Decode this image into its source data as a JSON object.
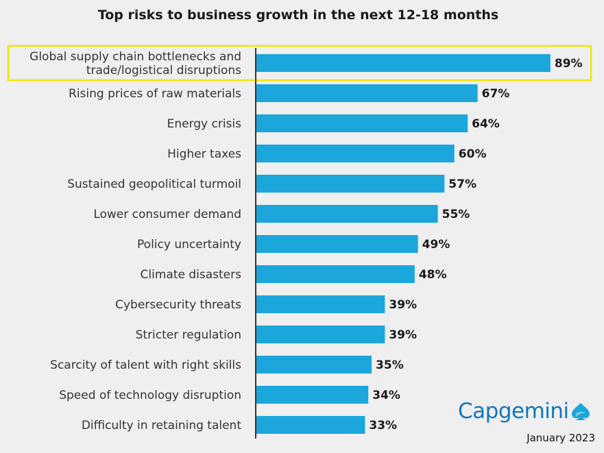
{
  "chart_data": {
    "type": "bar",
    "orientation": "horizontal",
    "title": "Top risks to business growth in the next 12-18 months",
    "categories": [
      "Global supply chain bottlenecks and trade/logistical disruptions",
      "Rising prices of raw materials",
      "Energy crisis",
      "Higher taxes",
      "Sustained geopolitical turmoil",
      "Lower consumer demand",
      "Policy uncertainty",
      "Climate disasters",
      "Cybersecurity threats",
      "Stricter regulation",
      "Scarcity of talent with right skills",
      "Speed of technology disruption",
      "Difficulty in retaining talent"
    ],
    "category_lines": [
      [
        "Global supply chain bottlenecks and",
        "trade/logistical disruptions"
      ],
      [
        "Rising prices of raw materials"
      ],
      [
        "Energy crisis"
      ],
      [
        "Higher taxes"
      ],
      [
        "Sustained geopolitical turmoil"
      ],
      [
        "Lower consumer demand"
      ],
      [
        "Policy uncertainty"
      ],
      [
        "Climate disasters"
      ],
      [
        "Cybersecurity threats"
      ],
      [
        "Stricter regulation"
      ],
      [
        "Scarcity of talent with right skills"
      ],
      [
        "Speed of technology disruption"
      ],
      [
        "Difficulty in retaining talent"
      ]
    ],
    "values": [
      89,
      67,
      64,
      60,
      57,
      55,
      49,
      48,
      39,
      39,
      35,
      34,
      33
    ],
    "value_labels": [
      "89%",
      "67%",
      "64%",
      "60%",
      "57%",
      "55%",
      "49%",
      "48%",
      "39%",
      "39%",
      "35%",
      "34%",
      "33%"
    ],
    "unit": "%",
    "xlim": [
      0,
      100
    ],
    "grid": false,
    "highlighted_category_index": 0,
    "colors": {
      "bar": "#1ba6dc",
      "highlight_border": "#f2e500",
      "axis": "#333333",
      "background": "#efefef"
    }
  },
  "branding": {
    "logo_text": "Capgemini",
    "logo_icon": "spade-logo-icon",
    "logo_color": "#1277b8",
    "date": "January 2023"
  }
}
